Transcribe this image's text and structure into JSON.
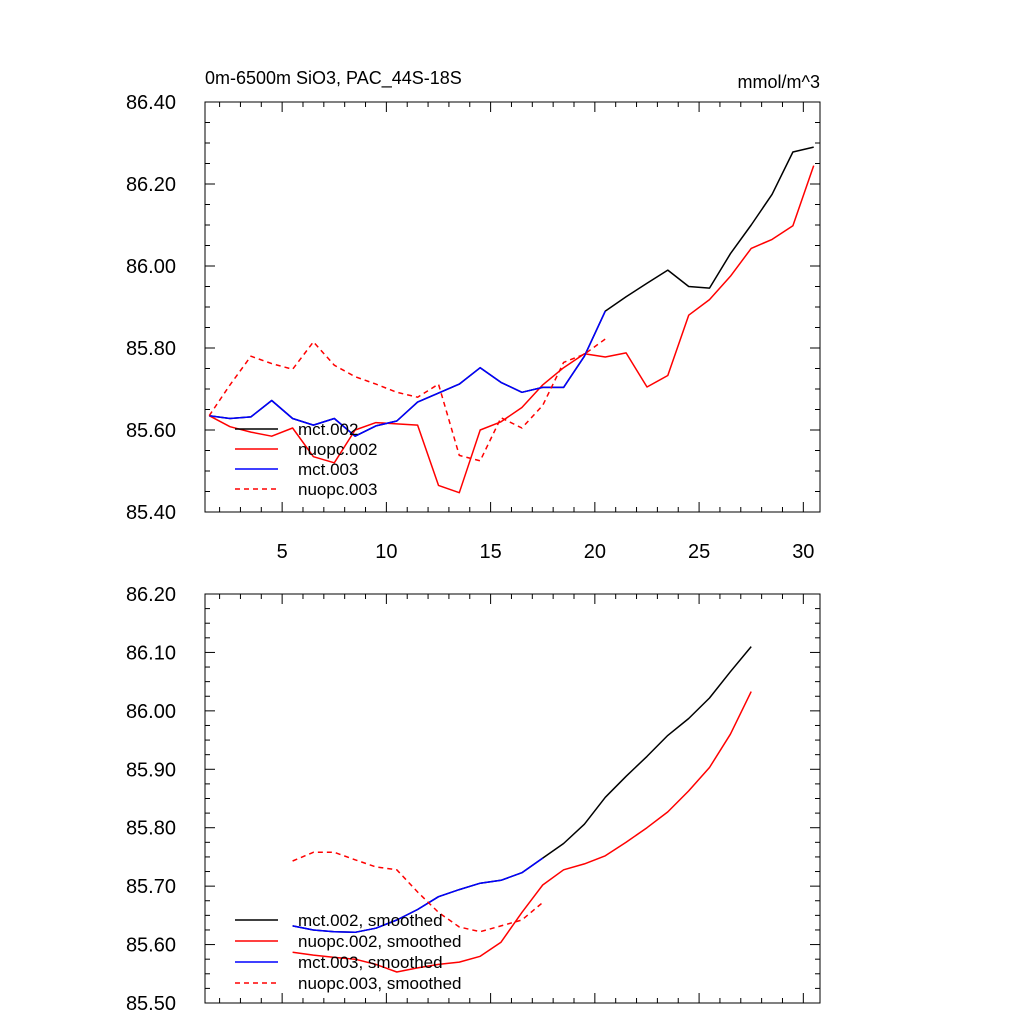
{
  "chart_data": [
    {
      "type": "line",
      "title": "0m-6500m SiO3, PAC_44S-18S",
      "units": "mmol/m^3",
      "xlim": [
        1.3,
        30.8
      ],
      "ylim": [
        85.4,
        86.4
      ],
      "xticks": [
        5,
        10,
        15,
        20,
        25,
        30
      ],
      "yticks": [
        85.4,
        85.6,
        85.8,
        86.0,
        86.2,
        86.4
      ],
      "ytick_labels": [
        "85.40",
        "85.60",
        "85.80",
        "86.00",
        "86.20",
        "86.40"
      ],
      "legend_position": "bottom-left",
      "series": [
        {
          "name": "mct.002",
          "color": "#000000",
          "dash": "solid",
          "x": [
            1.5,
            2.5,
            3.5,
            4.5,
            5.5,
            6.5,
            7.5,
            8.5,
            9.5,
            10.5,
            11.5,
            12.5,
            13.5,
            14.5,
            15.5,
            16.5,
            17.5,
            18.5,
            19.5,
            20.5,
            21.5,
            22.5,
            23.5,
            24.5,
            25.5,
            26.5,
            27.5,
            28.5,
            29.5,
            30.5
          ],
          "y": [
            85.635,
            85.628,
            85.632,
            85.672,
            85.628,
            85.612,
            85.628,
            85.585,
            85.61,
            85.622,
            85.668,
            85.69,
            85.712,
            85.752,
            85.716,
            85.692,
            85.704,
            85.704,
            85.78,
            85.89,
            85.925,
            85.958,
            85.99,
            85.95,
            85.946,
            86.03,
            86.1,
            86.175,
            86.278,
            86.29
          ]
        },
        {
          "name": "nuopc.002",
          "color": "#ff0000",
          "dash": "solid",
          "x": [
            1.5,
            2.5,
            3.5,
            4.5,
            5.5,
            6.5,
            7.5,
            8.5,
            9.5,
            10.5,
            11.5,
            12.5,
            13.5,
            14.5,
            15.5,
            16.5,
            17.5,
            18.5,
            19.5,
            20.5,
            21.5,
            22.5,
            23.5,
            24.5,
            25.5,
            26.5,
            27.5,
            28.5,
            29.5,
            30.5
          ],
          "y": [
            85.635,
            85.608,
            85.595,
            85.585,
            85.605,
            85.535,
            85.52,
            85.6,
            85.618,
            85.615,
            85.612,
            85.465,
            85.447,
            85.6,
            85.62,
            85.655,
            85.71,
            85.752,
            85.786,
            85.778,
            85.788,
            85.705,
            85.733,
            85.88,
            85.918,
            85.975,
            86.043,
            86.065,
            86.098,
            86.245
          ]
        },
        {
          "name": "mct.003",
          "color": "#0000ff",
          "dash": "solid",
          "x": [
            1.5,
            2.5,
            3.5,
            4.5,
            5.5,
            6.5,
            7.5,
            8.5,
            9.5,
            10.5,
            11.5,
            12.5,
            13.5,
            14.5,
            15.5,
            16.5,
            17.5,
            18.5,
            19.5,
            20.5
          ],
          "y": [
            85.635,
            85.628,
            85.632,
            85.672,
            85.628,
            85.612,
            85.628,
            85.585,
            85.61,
            85.622,
            85.668,
            85.69,
            85.712,
            85.752,
            85.716,
            85.692,
            85.704,
            85.704,
            85.78,
            85.89
          ]
        },
        {
          "name": "nuopc.003",
          "color": "#ff0000",
          "dash": "dashed",
          "x": [
            1.5,
            2.5,
            3.5,
            4.5,
            5.5,
            6.5,
            7.5,
            8.5,
            9.5,
            10.5,
            11.5,
            12.5,
            13.5,
            14.5,
            15.5,
            16.5,
            17.5,
            18.5,
            19.5,
            20.5
          ],
          "y": [
            85.635,
            85.71,
            85.78,
            85.762,
            85.748,
            85.815,
            85.758,
            85.73,
            85.712,
            85.692,
            85.68,
            85.712,
            85.538,
            85.525,
            85.63,
            85.605,
            85.66,
            85.765,
            85.785,
            85.822
          ]
        }
      ]
    },
    {
      "type": "line",
      "xlim": [
        1.3,
        30.8
      ],
      "ylim": [
        85.5,
        86.2
      ],
      "xticks": [
        5,
        10,
        15,
        20,
        25,
        30
      ],
      "yticks": [
        85.5,
        85.6,
        85.7,
        85.8,
        85.9,
        86.0,
        86.1,
        86.2
      ],
      "ytick_labels": [
        "85.50",
        "85.60",
        "85.70",
        "85.80",
        "85.90",
        "86.00",
        "86.10",
        "86.20"
      ],
      "legend_position": "bottom-left",
      "series": [
        {
          "name": "mct.002, smoothed",
          "color": "#000000",
          "dash": "solid",
          "x": [
            5.5,
            6.5,
            7.5,
            8.5,
            9.5,
            10.5,
            11.5,
            12.5,
            13.5,
            14.5,
            15.5,
            16.5,
            17.5,
            18.5,
            19.5,
            20.5,
            21.5,
            22.5,
            23.5,
            24.5,
            25.5,
            26.5,
            27.5
          ],
          "y": [
            85.632,
            85.625,
            85.622,
            85.621,
            85.628,
            85.642,
            85.66,
            85.682,
            85.694,
            85.705,
            85.71,
            85.723,
            85.748,
            85.773,
            85.806,
            85.852,
            85.888,
            85.922,
            85.958,
            85.987,
            86.022,
            86.067,
            86.11
          ]
        },
        {
          "name": "nuopc.002, smoothed",
          "color": "#ff0000",
          "dash": "solid",
          "x": [
            5.5,
            6.5,
            7.5,
            8.5,
            9.5,
            10.5,
            11.5,
            12.5,
            13.5,
            14.5,
            15.5,
            16.5,
            17.5,
            18.5,
            19.5,
            20.5,
            21.5,
            22.5,
            23.5,
            24.5,
            25.5,
            26.5,
            27.5
          ],
          "y": [
            85.587,
            85.582,
            85.578,
            85.575,
            85.566,
            85.553,
            85.56,
            85.566,
            85.57,
            85.58,
            85.604,
            85.655,
            85.702,
            85.728,
            85.738,
            85.752,
            85.775,
            85.8,
            85.827,
            85.863,
            85.903,
            85.96,
            86.033
          ]
        },
        {
          "name": "mct.003, smoothed",
          "color": "#0000ff",
          "dash": "solid",
          "x": [
            5.5,
            6.5,
            7.5,
            8.5,
            9.5,
            10.5,
            11.5,
            12.5,
            13.5,
            14.5,
            15.5,
            16.5,
            17.5
          ],
          "y": [
            85.632,
            85.625,
            85.622,
            85.621,
            85.628,
            85.642,
            85.66,
            85.682,
            85.694,
            85.705,
            85.71,
            85.723,
            85.748
          ]
        },
        {
          "name": "nuopc.003, smoothed",
          "color": "#ff0000",
          "dash": "dashed",
          "x": [
            5.5,
            6.5,
            7.5,
            8.5,
            9.5,
            10.5,
            11.5,
            12.5,
            13.5,
            14.5,
            15.5,
            16.5,
            17.5
          ],
          "y": [
            85.743,
            85.758,
            85.758,
            85.745,
            85.733,
            85.728,
            85.69,
            85.655,
            85.63,
            85.622,
            85.632,
            85.642,
            85.672
          ]
        }
      ]
    }
  ]
}
